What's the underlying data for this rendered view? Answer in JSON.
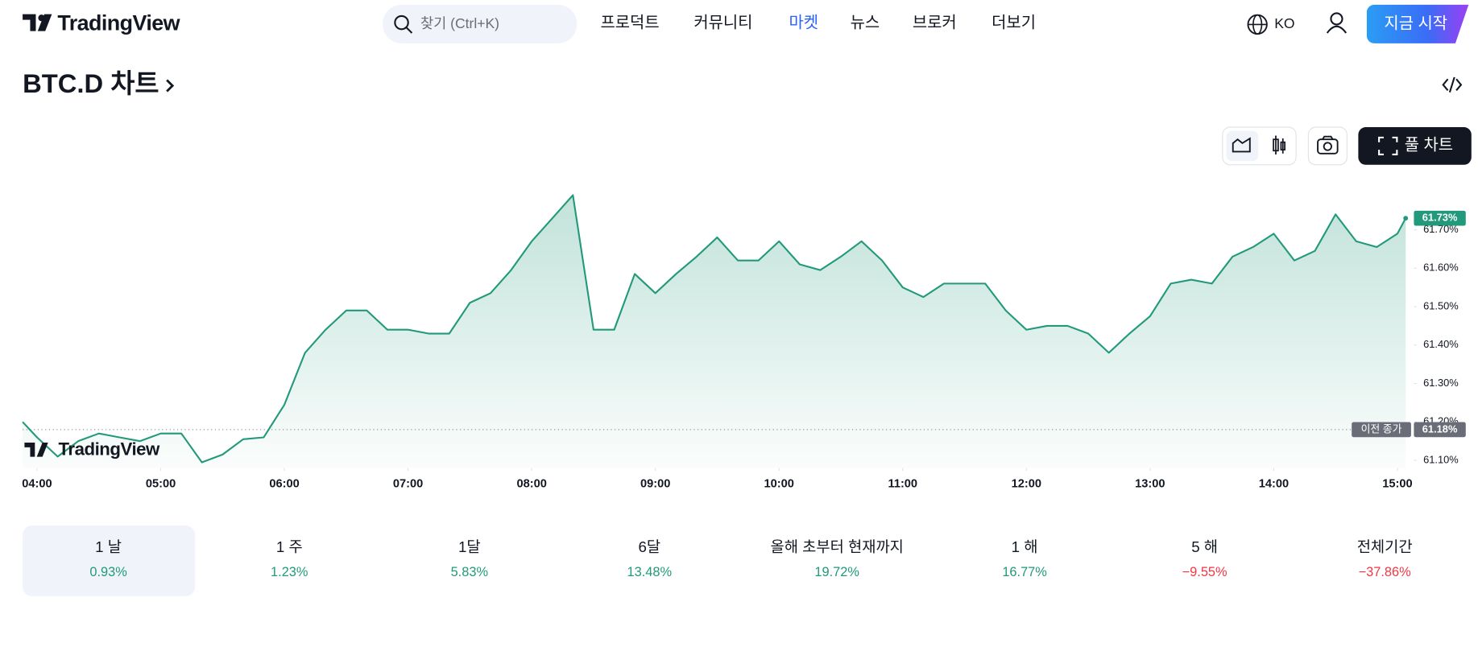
{
  "header": {
    "logo": "TradingView",
    "search": "찾기 (Ctrl+K)",
    "nav": [
      {
        "label": "프로덕트",
        "color": "#131722"
      },
      {
        "label": "커뮤니티",
        "color": "#131722"
      },
      {
        "label": "마켓",
        "color": "#2962ff"
      },
      {
        "label": "뉴스",
        "color": "#131722"
      },
      {
        "label": "브로커",
        "color": "#131722"
      },
      {
        "label": "더보기",
        "color": "#131722"
      }
    ],
    "language": "KO",
    "cta": "지금 시작"
  },
  "title": "BTC.D 차트",
  "toolbar": {
    "full_chart": "풀 차트"
  },
  "chart_data": {
    "type": "line",
    "x": [
      "03:53",
      "04:00",
      "04:10",
      "04:20",
      "04:30",
      "04:40",
      "04:50",
      "05:00",
      "05:10",
      "05:20",
      "05:30",
      "05:40",
      "05:50",
      "06:00",
      "06:10",
      "06:20",
      "06:30",
      "06:40",
      "06:50",
      "07:00",
      "07:10",
      "07:20",
      "07:30",
      "07:40",
      "07:50",
      "08:00",
      "08:10",
      "08:20",
      "08:30",
      "08:40",
      "08:50",
      "09:00",
      "09:10",
      "09:20",
      "09:30",
      "09:40",
      "09:50",
      "10:00",
      "10:10",
      "10:20",
      "10:30",
      "10:40",
      "10:50",
      "11:00",
      "11:10",
      "11:20",
      "11:30",
      "11:40",
      "11:50",
      "12:00",
      "12:10",
      "12:20",
      "12:30",
      "12:40",
      "12:50",
      "13:00",
      "13:10",
      "13:20",
      "13:30",
      "13:40",
      "13:50",
      "14:00",
      "14:10",
      "14:20",
      "14:30",
      "14:40",
      "14:50",
      "15:00",
      "15:04"
    ],
    "series": [
      {
        "color": "#22997a",
        "values": [
          61.2,
          61.16,
          61.11,
          61.15,
          61.17,
          61.16,
          61.15,
          61.17,
          61.17,
          61.095,
          61.115,
          61.155,
          61.16,
          61.245,
          61.38,
          61.44,
          61.49,
          61.49,
          61.44,
          61.44,
          61.43,
          61.43,
          61.51,
          61.535,
          61.595,
          61.67,
          61.73,
          61.79,
          61.44,
          61.44,
          61.585,
          61.535,
          61.585,
          61.63,
          61.68,
          61.62,
          61.62,
          61.67,
          61.61,
          61.595,
          61.63,
          61.67,
          61.62,
          61.55,
          61.525,
          61.56,
          61.56,
          61.56,
          61.49,
          61.44,
          61.45,
          61.45,
          61.43,
          61.38,
          61.43,
          61.475,
          61.56,
          61.57,
          61.56,
          61.63,
          61.655,
          61.69,
          61.62,
          61.645,
          61.74,
          61.67,
          61.655,
          61.69,
          61.73
        ]
      }
    ],
    "xlim": [
      "03:53",
      "15:08"
    ],
    "xticks": [
      "04:00",
      "05:00",
      "06:00",
      "07:00",
      "08:00",
      "09:00",
      "10:00",
      "11:00",
      "12:00",
      "13:00",
      "14:00",
      "15:00"
    ],
    "ylim": [
      61.08,
      61.82
    ],
    "yticks": [
      {
        "value": 61.1,
        "label": "61.10%"
      },
      {
        "value": 61.2,
        "label": "61.20%"
      },
      {
        "value": 61.3,
        "label": "61.30%"
      },
      {
        "value": 61.4,
        "label": "61.40%"
      },
      {
        "value": 61.5,
        "label": "61.50%"
      },
      {
        "value": 61.6,
        "label": "61.60%"
      },
      {
        "value": 61.7,
        "label": "61.70%"
      }
    ],
    "previous_close": {
      "text": "이전 종가",
      "value": 61.18,
      "label": "61.18%"
    },
    "last_price": {
      "value": 61.73,
      "label": "61.73%"
    },
    "watermark": "TradingView"
  },
  "periods": [
    {
      "label": "1 날",
      "change": "0.93%",
      "color": "#22997a"
    },
    {
      "label": "1 주",
      "change": "1.23%",
      "color": "#22997a"
    },
    {
      "label": "1달",
      "change": "5.83%",
      "color": "#22997a"
    },
    {
      "label": "6달",
      "change": "13.48%",
      "color": "#22997a"
    },
    {
      "label": "올해 초부터 현재까지",
      "change": "19.72%",
      "color": "#22997a"
    },
    {
      "label": "1 해",
      "change": "16.77%",
      "color": "#22997a"
    },
    {
      "label": "5 해",
      "change": "−9.55%",
      "color": "#f23645"
    },
    {
      "label": "전체기간",
      "change": "−37.86%",
      "color": "#f23645"
    }
  ]
}
